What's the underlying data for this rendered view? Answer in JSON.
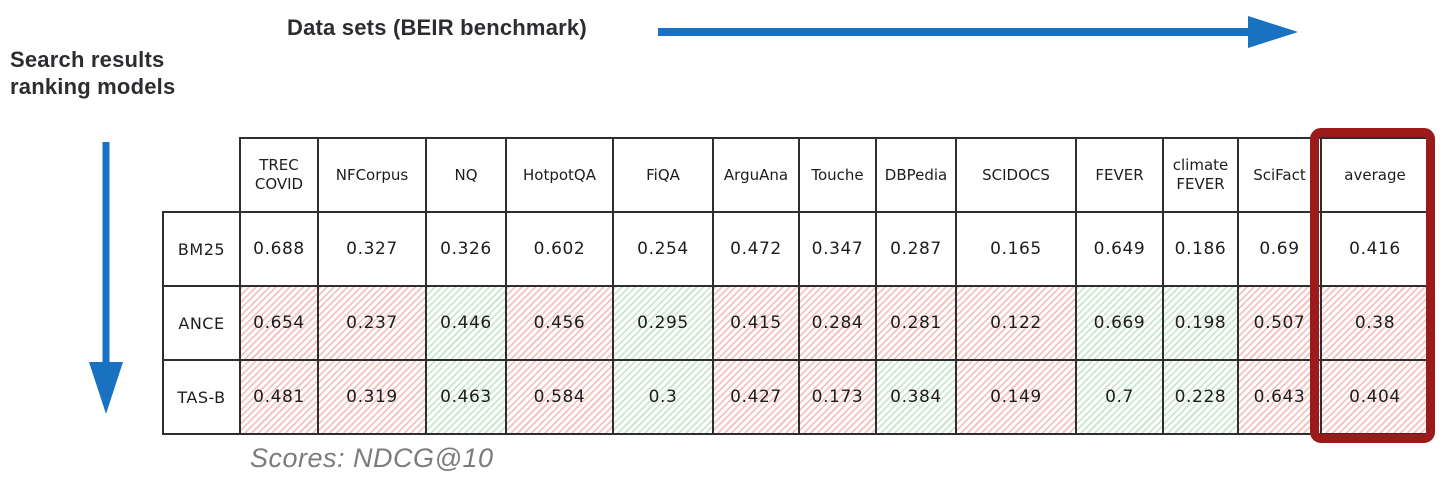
{
  "annotations": {
    "datasets_label": "Data sets (BEIR benchmark)",
    "models_label": "Search results\nranking models",
    "caption": "Scores: NDCG@10"
  },
  "colors": {
    "arrow_blue": "#1971c2",
    "highlight_maroon": "#9b1a1a",
    "hatch_red_stripe": "#f5c2c0",
    "hatch_green_stripe": "#c9e6ce",
    "table_line": "#2e2e2e",
    "caption_gray": "#7c7c7c"
  },
  "chart_data": {
    "type": "table",
    "title": "BEIR benchmark NDCG@10 scores per ranking model",
    "score_metric": "NDCG@10",
    "columns": [
      "TREC COVID",
      "NFCorpus",
      "NQ",
      "HotpotQA",
      "FiQA",
      "ArguAna",
      "Touche",
      "DBPedia",
      "SCIDOCS",
      "FEVER",
      "climate FEVER",
      "SciFact",
      "average"
    ],
    "highlighted_column": "average",
    "rows": [
      {
        "model": "BM25",
        "values": [
          "0.688",
          "0.327",
          "0.326",
          "0.602",
          "0.254",
          "0.472",
          "0.347",
          "0.287",
          "0.165",
          "0.649",
          "0.186",
          "0.69",
          "0.416"
        ],
        "cell_colors": [
          "white",
          "white",
          "white",
          "white",
          "white",
          "white",
          "white",
          "white",
          "white",
          "white",
          "white",
          "white",
          "white"
        ]
      },
      {
        "model": "ANCE",
        "values": [
          "0.654",
          "0.237",
          "0.446",
          "0.456",
          "0.295",
          "0.415",
          "0.284",
          "0.281",
          "0.122",
          "0.669",
          "0.198",
          "0.507",
          "0.38"
        ],
        "cell_colors": [
          "red",
          "red",
          "green",
          "red",
          "green",
          "red",
          "red",
          "red",
          "red",
          "green",
          "green",
          "red",
          "red"
        ]
      },
      {
        "model": "TAS-B",
        "values": [
          "0.481",
          "0.319",
          "0.463",
          "0.584",
          "0.3",
          "0.427",
          "0.173",
          "0.384",
          "0.149",
          "0.7",
          "0.228",
          "0.643",
          "0.404"
        ],
        "cell_colors": [
          "red",
          "red",
          "green",
          "red",
          "green",
          "red",
          "red",
          "green",
          "red",
          "green",
          "green",
          "red",
          "red"
        ]
      }
    ]
  }
}
